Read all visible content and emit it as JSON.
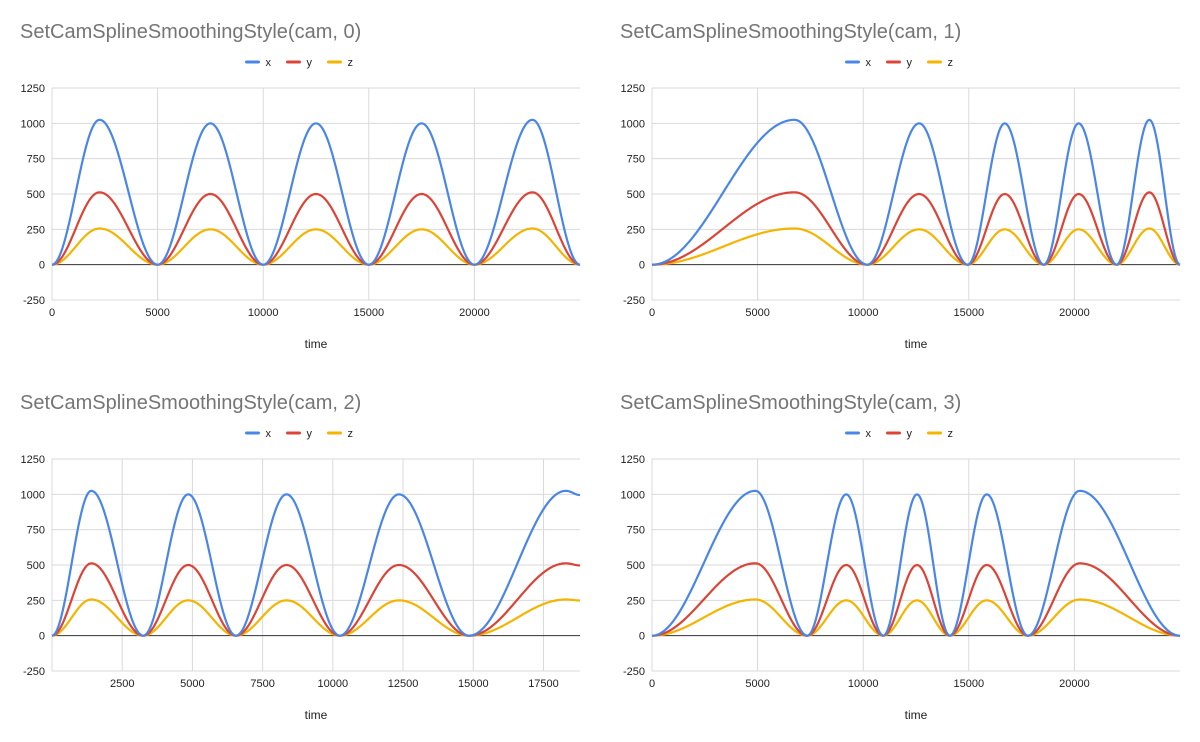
{
  "chart_data": [
    {
      "type": "line",
      "title": "SetCamSplineSmoothingStyle(cam, 0)",
      "xlabel": "time",
      "ylabel": "",
      "xlim": [
        0,
        25000
      ],
      "ylim": [
        -250,
        1250
      ],
      "xticks": [
        0,
        5000,
        10000,
        15000,
        20000
      ],
      "yticks": [
        -250,
        0,
        250,
        500,
        750,
        1000,
        1250
      ],
      "grid": true,
      "legend": "top-center",
      "series": [
        {
          "name": "x",
          "color": "#4a86e8",
          "values": [
            [
              0,
              0
            ],
            [
              2250,
              1025
            ],
            [
              5000,
              0
            ],
            [
              7500,
              1000
            ],
            [
              10000,
              0
            ],
            [
              12500,
              1000
            ],
            [
              15000,
              0
            ],
            [
              17500,
              1000
            ],
            [
              20000,
              0
            ],
            [
              22750,
              1025
            ],
            [
              25000,
              0
            ]
          ]
        },
        {
          "name": "y",
          "color": "#db4437",
          "values": [
            [
              0,
              0
            ],
            [
              2250,
              512
            ],
            [
              5000,
              0
            ],
            [
              7500,
              500
            ],
            [
              10000,
              0
            ],
            [
              12500,
              500
            ],
            [
              15000,
              0
            ],
            [
              17500,
              500
            ],
            [
              20000,
              0
            ],
            [
              22750,
              512
            ],
            [
              25000,
              0
            ]
          ]
        },
        {
          "name": "z",
          "color": "#f4b400",
          "values": [
            [
              0,
              0
            ],
            [
              2250,
              256
            ],
            [
              5000,
              0
            ],
            [
              7500,
              250
            ],
            [
              10000,
              0
            ],
            [
              12500,
              250
            ],
            [
              15000,
              0
            ],
            [
              17500,
              250
            ],
            [
              20000,
              0
            ],
            [
              22750,
              256
            ],
            [
              25000,
              0
            ]
          ]
        }
      ]
    },
    {
      "type": "line",
      "title": "SetCamSplineSmoothingStyle(cam, 1)",
      "xlabel": "time",
      "ylabel": "",
      "xlim": [
        0,
        25000
      ],
      "ylim": [
        -250,
        1250
      ],
      "xticks": [
        0,
        5000,
        10000,
        15000,
        20000
      ],
      "yticks": [
        -250,
        0,
        250,
        500,
        750,
        1000,
        1250
      ],
      "grid": true,
      "legend": "top-center",
      "series": [
        {
          "name": "x",
          "color": "#4a86e8",
          "values": [
            [
              0,
              0
            ],
            [
              6750,
              1025
            ],
            [
              10200,
              0
            ],
            [
              12650,
              1000
            ],
            [
              14950,
              0
            ],
            [
              16700,
              1000
            ],
            [
              18550,
              0
            ],
            [
              20200,
              1000
            ],
            [
              22000,
              0
            ],
            [
              23550,
              1025
            ],
            [
              25000,
              0
            ]
          ]
        },
        {
          "name": "y",
          "color": "#db4437",
          "values": [
            [
              0,
              0
            ],
            [
              6750,
              512
            ],
            [
              10200,
              0
            ],
            [
              12650,
              500
            ],
            [
              14950,
              0
            ],
            [
              16700,
              500
            ],
            [
              18550,
              0
            ],
            [
              20200,
              500
            ],
            [
              22000,
              0
            ],
            [
              23550,
              512
            ],
            [
              25000,
              0
            ]
          ]
        },
        {
          "name": "z",
          "color": "#f4b400",
          "values": [
            [
              0,
              0
            ],
            [
              6750,
              256
            ],
            [
              10200,
              0
            ],
            [
              12650,
              250
            ],
            [
              14950,
              0
            ],
            [
              16700,
              250
            ],
            [
              18550,
              0
            ],
            [
              20200,
              250
            ],
            [
              22000,
              0
            ],
            [
              23550,
              256
            ],
            [
              25000,
              0
            ]
          ]
        }
      ]
    },
    {
      "type": "line",
      "title": "SetCamSplineSmoothingStyle(cam, 2)",
      "xlabel": "time",
      "ylabel": "",
      "xlim": [
        0,
        18800
      ],
      "ylim": [
        -250,
        1250
      ],
      "xticks": [
        2500,
        5000,
        7500,
        10000,
        12500,
        15000,
        17500
      ],
      "yticks": [
        -250,
        0,
        250,
        500,
        750,
        1000,
        1250
      ],
      "grid": true,
      "legend": "top-center",
      "series": [
        {
          "name": "x",
          "color": "#4a86e8",
          "values": [
            [
              0,
              0
            ],
            [
              1400,
              1025
            ],
            [
              3250,
              0
            ],
            [
              4850,
              1000
            ],
            [
              6550,
              0
            ],
            [
              8350,
              1000
            ],
            [
              10250,
              0
            ],
            [
              12350,
              1000
            ],
            [
              14850,
              0
            ],
            [
              18300,
              1025
            ],
            [
              18800,
              995
            ]
          ]
        },
        {
          "name": "y",
          "color": "#db4437",
          "values": [
            [
              0,
              0
            ],
            [
              1400,
              512
            ],
            [
              3250,
              0
            ],
            [
              4850,
              500
            ],
            [
              6550,
              0
            ],
            [
              8350,
              500
            ],
            [
              10250,
              0
            ],
            [
              12350,
              500
            ],
            [
              14850,
              0
            ],
            [
              18300,
              512
            ],
            [
              18800,
              497
            ]
          ]
        },
        {
          "name": "z",
          "color": "#f4b400",
          "values": [
            [
              0,
              0
            ],
            [
              1400,
              256
            ],
            [
              3250,
              0
            ],
            [
              4850,
              250
            ],
            [
              6550,
              0
            ],
            [
              8350,
              250
            ],
            [
              10250,
              0
            ],
            [
              12350,
              250
            ],
            [
              14850,
              0
            ],
            [
              18300,
              256
            ],
            [
              18800,
              249
            ]
          ]
        }
      ]
    },
    {
      "type": "line",
      "title": "SetCamSplineSmoothingStyle(cam, 3)",
      "xlabel": "time",
      "ylabel": "",
      "xlim": [
        0,
        25000
      ],
      "ylim": [
        -250,
        1250
      ],
      "xticks": [
        0,
        5000,
        10000,
        15000,
        20000
      ],
      "yticks": [
        -250,
        0,
        250,
        500,
        750,
        1000,
        1250
      ],
      "grid": true,
      "legend": "top-center",
      "series": [
        {
          "name": "x",
          "color": "#4a86e8",
          "values": [
            [
              0,
              0
            ],
            [
              4900,
              1025
            ],
            [
              7350,
              0
            ],
            [
              9200,
              1000
            ],
            [
              10950,
              0
            ],
            [
              12550,
              1000
            ],
            [
              14100,
              0
            ],
            [
              15850,
              1000
            ],
            [
              17800,
              0
            ],
            [
              20250,
              1025
            ],
            [
              25000,
              0
            ]
          ]
        },
        {
          "name": "y",
          "color": "#db4437",
          "values": [
            [
              0,
              0
            ],
            [
              4900,
              512
            ],
            [
              7350,
              0
            ],
            [
              9200,
              500
            ],
            [
              10950,
              0
            ],
            [
              12550,
              500
            ],
            [
              14100,
              0
            ],
            [
              15850,
              500
            ],
            [
              17800,
              0
            ],
            [
              20250,
              512
            ],
            [
              25000,
              0
            ]
          ]
        },
        {
          "name": "z",
          "color": "#f4b400",
          "values": [
            [
              0,
              0
            ],
            [
              4900,
              256
            ],
            [
              7350,
              0
            ],
            [
              9200,
              250
            ],
            [
              10950,
              0
            ],
            [
              12550,
              250
            ],
            [
              14100,
              0
            ],
            [
              15850,
              250
            ],
            [
              17800,
              0
            ],
            [
              20250,
              256
            ],
            [
              25000,
              0
            ]
          ]
        }
      ]
    }
  ]
}
